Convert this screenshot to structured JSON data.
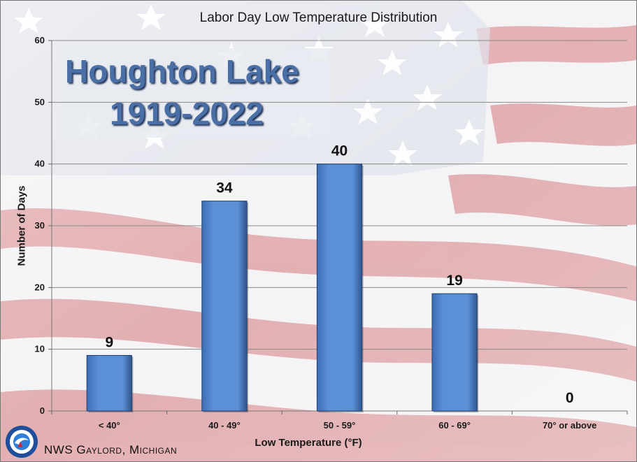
{
  "chart_data": {
    "type": "bar",
    "title": "Labor Day Low Temperature Distribution",
    "overlay_title": [
      "Houghton Lake",
      "1919-2022"
    ],
    "xlabel": "Low Temperature (°F)",
    "ylabel": "Number of Days",
    "categories": [
      "< 40°",
      "40 - 49°",
      "50 - 59°",
      "60 - 69°",
      "70° or above"
    ],
    "values": [
      9,
      34,
      40,
      19,
      0
    ],
    "data_labels": [
      "9",
      "34",
      "40",
      "19",
      "0"
    ],
    "ylim": [
      0,
      60
    ],
    "yticks": [
      0,
      10,
      20,
      30,
      40,
      50,
      60
    ],
    "ytick_labels": [
      "0",
      "10",
      "20",
      "30",
      "40",
      "50",
      "60"
    ],
    "grid": true,
    "bar_color": "#5b8fd6",
    "background": "American flag"
  },
  "credit": "NWS Gaylord, Michigan"
}
